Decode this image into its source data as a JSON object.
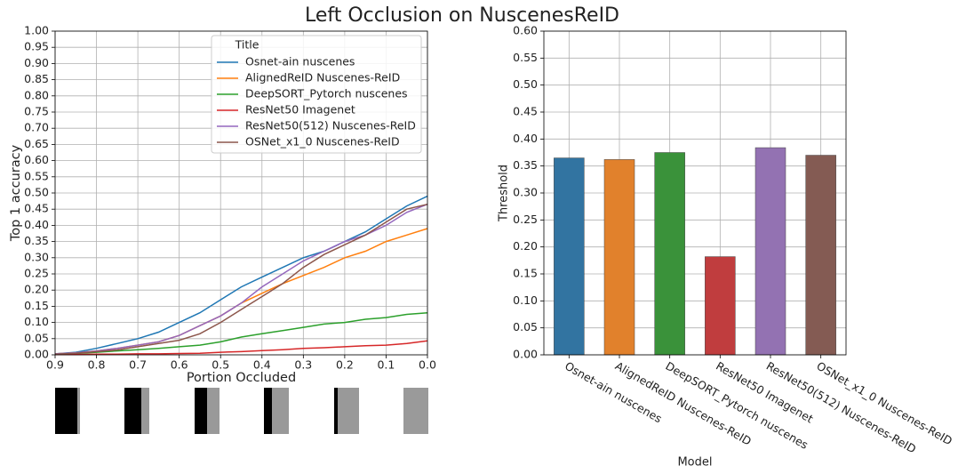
{
  "title": "Left Occlusion on NuscenesReID",
  "chart_data": [
    {
      "type": "line",
      "ylabel": "Top 1 accuracy",
      "xlabel": "Portion Occluded",
      "legend_title": "Title",
      "legend": "upper right",
      "grid": true,
      "xlim": [
        0.9,
        0.0
      ],
      "xticks": [
        0.9,
        0.8,
        0.7,
        0.6,
        0.5,
        0.4,
        0.3,
        0.2,
        0.1,
        {
          "value": 0,
          "label": "0.0"
        }
      ],
      "ylim": [
        0,
        1
      ],
      "yticks": [
        {
          "value": 0,
          "label": "0.00"
        },
        {
          "value": 0.05,
          "label": "0.05"
        },
        {
          "value": 0.1,
          "label": "0.10"
        },
        {
          "value": 0.15,
          "label": "0.15"
        },
        {
          "value": 0.2,
          "label": "0.20"
        },
        {
          "value": 0.25,
          "label": "0.25"
        },
        {
          "value": 0.3,
          "label": "0.30"
        },
        {
          "value": 0.35,
          "label": "0.35"
        },
        {
          "value": 0.4,
          "label": "0.40"
        },
        {
          "value": 0.45,
          "label": "0.45"
        },
        {
          "value": 0.5,
          "label": "0.50"
        },
        {
          "value": 0.55,
          "label": "0.55"
        },
        {
          "value": 0.6,
          "label": "0.60"
        },
        {
          "value": 0.65,
          "label": "0.65"
        },
        {
          "value": 0.7,
          "label": "0.70"
        },
        {
          "value": 0.75,
          "label": "0.75"
        },
        {
          "value": 0.8,
          "label": "0.80"
        },
        {
          "value": 0.85,
          "label": "0.85"
        },
        {
          "value": 0.9,
          "label": "0.90"
        },
        {
          "value": 0.95,
          "label": "0.95"
        },
        {
          "value": 1,
          "label": "1.00"
        }
      ],
      "x": [
        0.9,
        0.85,
        0.8,
        0.75,
        0.7,
        0.65,
        0.6,
        0.55,
        0.5,
        0.45,
        0.4,
        0.35,
        0.3,
        0.25,
        0.2,
        0.15,
        0.1,
        0.05,
        0.0
      ],
      "series": [
        {
          "name": "Osnet-ain nuscenes",
          "color": "#1f77b4",
          "values": [
            0.003,
            0.008,
            0.02,
            0.035,
            0.05,
            0.07,
            0.1,
            0.13,
            0.17,
            0.21,
            0.24,
            0.27,
            0.3,
            0.32,
            0.35,
            0.38,
            0.42,
            0.46,
            0.49
          ]
        },
        {
          "name": "AlignedReID Nuscenes-ReID",
          "color": "#ff7f0e",
          "values": [
            0.003,
            0.006,
            0.012,
            0.02,
            0.03,
            0.04,
            0.06,
            0.09,
            0.12,
            0.16,
            0.19,
            0.22,
            0.245,
            0.27,
            0.3,
            0.32,
            0.35,
            0.37,
            0.39
          ]
        },
        {
          "name": "DeepSORT_Pytorch nuscenes",
          "color": "#2ca02c",
          "values": [
            0.002,
            0.004,
            0.008,
            0.012,
            0.016,
            0.02,
            0.025,
            0.03,
            0.04,
            0.055,
            0.065,
            0.075,
            0.085,
            0.095,
            0.1,
            0.11,
            0.115,
            0.125,
            0.13
          ]
        },
        {
          "name": "ResNet50 Imagenet",
          "color": "#d62728",
          "values": [
            0.001,
            0.001,
            0.002,
            0.002,
            0.003,
            0.003,
            0.004,
            0.005,
            0.008,
            0.01,
            0.013,
            0.016,
            0.02,
            0.022,
            0.025,
            0.028,
            0.03,
            0.035,
            0.043
          ]
        },
        {
          "name": "ResNet50(512) Nuscenes-ReID",
          "color": "#9467bd",
          "values": [
            0.003,
            0.006,
            0.012,
            0.02,
            0.03,
            0.04,
            0.06,
            0.09,
            0.12,
            0.16,
            0.21,
            0.25,
            0.29,
            0.32,
            0.35,
            0.37,
            0.4,
            0.44,
            0.465
          ]
        },
        {
          "name": "OSNet_x1_0 Nuscenes-ReID",
          "color": "#8c564b",
          "values": [
            0.002,
            0.005,
            0.01,
            0.015,
            0.025,
            0.035,
            0.045,
            0.065,
            0.1,
            0.14,
            0.18,
            0.22,
            0.27,
            0.31,
            0.34,
            0.37,
            0.41,
            0.45,
            0.465
          ]
        }
      ]
    },
    {
      "type": "bar",
      "ylabel": "Threshold",
      "xlabel": "Model",
      "grid": true,
      "categories": [
        "Osnet-ain nuscenes",
        "AlignedReID Nuscenes-ReID",
        "DeepSORT_Pytorch nuscenes",
        "ResNet50 Imagenet",
        "ResNet50(512) Nuscenes-ReID",
        "OSNet_x1_0 Nuscenes-ReID"
      ],
      "values": [
        0.365,
        0.362,
        0.375,
        0.182,
        0.384,
        0.37
      ],
      "colors": [
        "#3274a1",
        "#e1812c",
        "#3a923a",
        "#c03d3e",
        "#9372b2",
        "#845b53"
      ],
      "ylim": [
        0,
        0.6
      ],
      "yticks": [
        {
          "value": 0,
          "label": "0.00"
        },
        {
          "value": 0.05,
          "label": "0.05"
        },
        {
          "value": 0.1,
          "label": "0.10"
        },
        {
          "value": 0.15,
          "label": "0.15"
        },
        {
          "value": 0.2,
          "label": "0.20"
        },
        {
          "value": 0.25,
          "label": "0.25"
        },
        {
          "value": 0.3,
          "label": "0.30"
        },
        {
          "value": 0.35,
          "label": "0.35"
        },
        {
          "value": 0.4,
          "label": "0.40"
        },
        {
          "value": 0.45,
          "label": "0.45"
        },
        {
          "value": 0.5,
          "label": "0.50"
        },
        {
          "value": 0.55,
          "label": "0.55"
        },
        {
          "value": 0.6,
          "label": "0.60"
        }
      ]
    }
  ]
}
